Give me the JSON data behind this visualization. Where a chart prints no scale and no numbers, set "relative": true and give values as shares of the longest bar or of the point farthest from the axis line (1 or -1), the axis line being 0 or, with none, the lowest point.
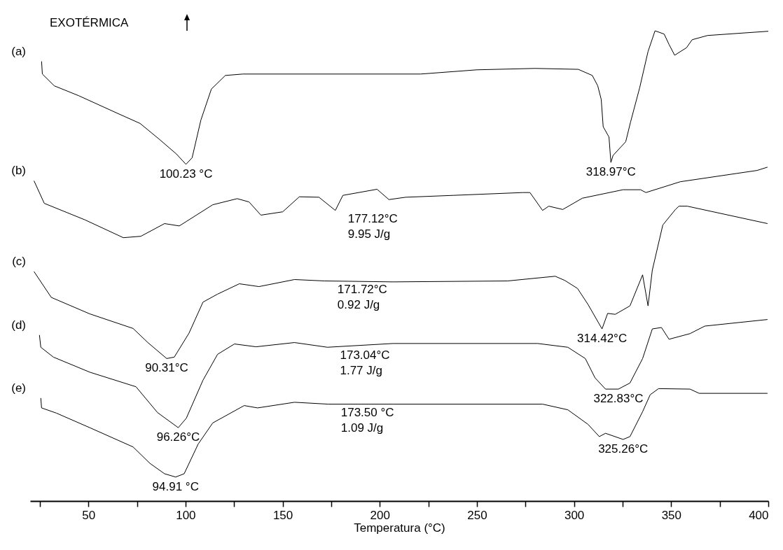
{
  "chart_data": {
    "type": "line",
    "title": "EXOTÉRMICA",
    "xlabel": "Temperatura (°C)",
    "relative": true,
    "tick_labels": "x",
    "xlim": [
      20,
      400
    ],
    "xticks": [
      {
        "value": 25,
        "label": null
      },
      50,
      {
        "value": 75,
        "label": null
      },
      100,
      {
        "value": 125,
        "label": null
      },
      150,
      {
        "value": 175,
        "label": null
      },
      200,
      {
        "value": 225,
        "label": null
      },
      250,
      {
        "value": 275,
        "label": null
      },
      300,
      {
        "value": 325,
        "label": null
      },
      350,
      {
        "value": 375,
        "label": null
      },
      400
    ],
    "series": [
      {
        "name": "(a)",
        "color": "#000000",
        "x": [
          25.9,
          26.3,
          32.4,
          45,
          64.7,
          76.6,
          86.3,
          95.3,
          100.23,
          103.4,
          107.9,
          113.3,
          120.5,
          129.5,
          221,
          250,
          279.9,
          302.2,
          309.4,
          312.2,
          314,
          315,
          318,
          318.97,
          320.1,
          326.6,
          329.1,
          333.8,
          338.1,
          341.7,
          346.4,
          348.9,
          351.8,
          357.9,
          360.8,
          368.7,
          400
        ],
        "values": [
          0.935,
          0.908,
          0.883,
          0.862,
          0.825,
          0.803,
          0.77,
          0.738,
          0.716,
          0.73,
          0.81,
          0.876,
          0.905,
          0.908,
          0.908,
          0.917,
          0.92,
          0.918,
          0.905,
          0.883,
          0.854,
          0.796,
          0.774,
          0.72,
          0.735,
          0.764,
          0.806,
          0.879,
          0.956,
          1,
          0.993,
          0.971,
          0.948,
          0.964,
          0.981,
          0.99,
          0.999
        ]
      },
      {
        "name": "(b)",
        "color": "#000000",
        "x": [
          22,
          27.3,
          48.2,
          68,
          77,
          89.2,
          96.8,
          114,
          126.6,
          132.7,
          138.8,
          150,
          158.6,
          168.7,
          177.12,
          181,
          198.6,
          204.7,
          213.3,
          237.8,
          273.7,
          277.3,
          283.8,
          287,
          294.2,
          304.3,
          325.2,
          334.2,
          337,
          354.7,
          394.2,
          399.6
        ],
        "values": [
          0.681,
          0.633,
          0.598,
          0.56,
          0.563,
          0.59,
          0.585,
          0.63,
          0.643,
          0.636,
          0.608,
          0.615,
          0.647,
          0.646,
          0.618,
          0.65,
          0.663,
          0.641,
          0.646,
          0.65,
          0.656,
          0.656,
          0.618,
          0.627,
          0.62,
          0.644,
          0.662,
          0.662,
          0.656,
          0.679,
          0.703,
          0.71
        ]
      },
      {
        "name": "(c)",
        "color": "#000000",
        "x": [
          22,
          30.9,
          50.7,
          73,
          80.6,
          90.31,
          94.2,
          101.8,
          109,
          116.5,
          127.7,
          137.8,
          156.1,
          171.72,
          206.8,
          265.8,
          290.3,
          295.3,
          301.8,
          307.2,
          314.42,
          317.3,
          321.2,
          328.8,
          335.3,
          338.1,
          340.3,
          345.7,
          352.2,
          354,
          358.3,
          399.6
        ],
        "values": [
          0.488,
          0.433,
          0.398,
          0.367,
          0.337,
          0.303,
          0.306,
          0.357,
          0.423,
          0.44,
          0.462,
          0.456,
          0.471,
          0.468,
          0.466,
          0.468,
          0.478,
          0.469,
          0.452,
          0.418,
          0.366,
          0.399,
          0.397,
          0.415,
          0.481,
          0.415,
          0.491,
          0.587,
          0.62,
          0.627,
          0.627,
          0.59
        ]
      },
      {
        "name": "(d)",
        "color": "#000000",
        "x": [
          24.8,
          25.5,
          32,
          50.7,
          74.5,
          85.6,
          96.26,
          100.4,
          109,
          116.5,
          125.2,
          136.3,
          156.1,
          173.04,
          206.8,
          281.3,
          296.8,
          305.8,
          310.8,
          316.2,
          322.83,
          328.8,
          335.3,
          340.3,
          345,
          348.9,
          359.7,
          367.3,
          399.6
        ],
        "values": [
          0.353,
          0.327,
          0.306,
          0.274,
          0.243,
          0.188,
          0.156,
          0.176,
          0.257,
          0.312,
          0.334,
          0.328,
          0.337,
          0.327,
          0.335,
          0.335,
          0.327,
          0.303,
          0.262,
          0.238,
          0.238,
          0.251,
          0.303,
          0.366,
          0.369,
          0.344,
          0.356,
          0.372,
          0.386
        ]
      },
      {
        "name": "(e)",
        "color": "#000000",
        "x": [
          25.5,
          25.9,
          33.5,
          50.7,
          73,
          81.7,
          89.2,
          94.91,
          99.3,
          106.5,
          114,
          130.2,
          137.1,
          156.1,
          173.5,
          206.8,
          283.8,
          296.8,
          307.2,
          313,
          316.2,
          325.26,
          328.8,
          335.3,
          339.2,
          343.5,
          359.7,
          364.4,
          399.6
        ],
        "values": [
          0.219,
          0.198,
          0.187,
          0.156,
          0.115,
          0.08,
          0.058,
          0.051,
          0.058,
          0.121,
          0.166,
          0.203,
          0.198,
          0.21,
          0.206,
          0.206,
          0.206,
          0.194,
          0.163,
          0.137,
          0.144,
          0.131,
          0.137,
          0.19,
          0.226,
          0.239,
          0.238,
          0.229,
          0.229
        ]
      }
    ],
    "annotations": [
      {
        "text": "100.23 °C",
        "x": 100.23,
        "y": 0.716
      },
      {
        "text": "318.97°C",
        "x": 318.97,
        "y": 0.72
      },
      {
        "text": "177.12°C\n9.95 J/g",
        "x": 177.12,
        "y": 0.618
      },
      {
        "text": "171.72°C\n0.92 J/g",
        "x": 171.72,
        "y": 0.468
      },
      {
        "text": "90.31°C",
        "x": 90.31,
        "y": 0.303
      },
      {
        "text": "314.42°C",
        "x": 314.42,
        "y": 0.366
      },
      {
        "text": "173.04°C\n1.77 J/g",
        "x": 173.04,
        "y": 0.327
      },
      {
        "text": "96.26°C",
        "x": 96.26,
        "y": 0.156
      },
      {
        "text": "322.83°C",
        "x": 322.83,
        "y": 0.238
      },
      {
        "text": "173.50 °C\n1.09 J/g",
        "x": 173.5,
        "y": 0.206
      },
      {
        "text": "325.26°C",
        "x": 325.26,
        "y": 0.131
      },
      {
        "text": "94.91 °C",
        "x": 94.91,
        "y": 0.051
      }
    ]
  }
}
